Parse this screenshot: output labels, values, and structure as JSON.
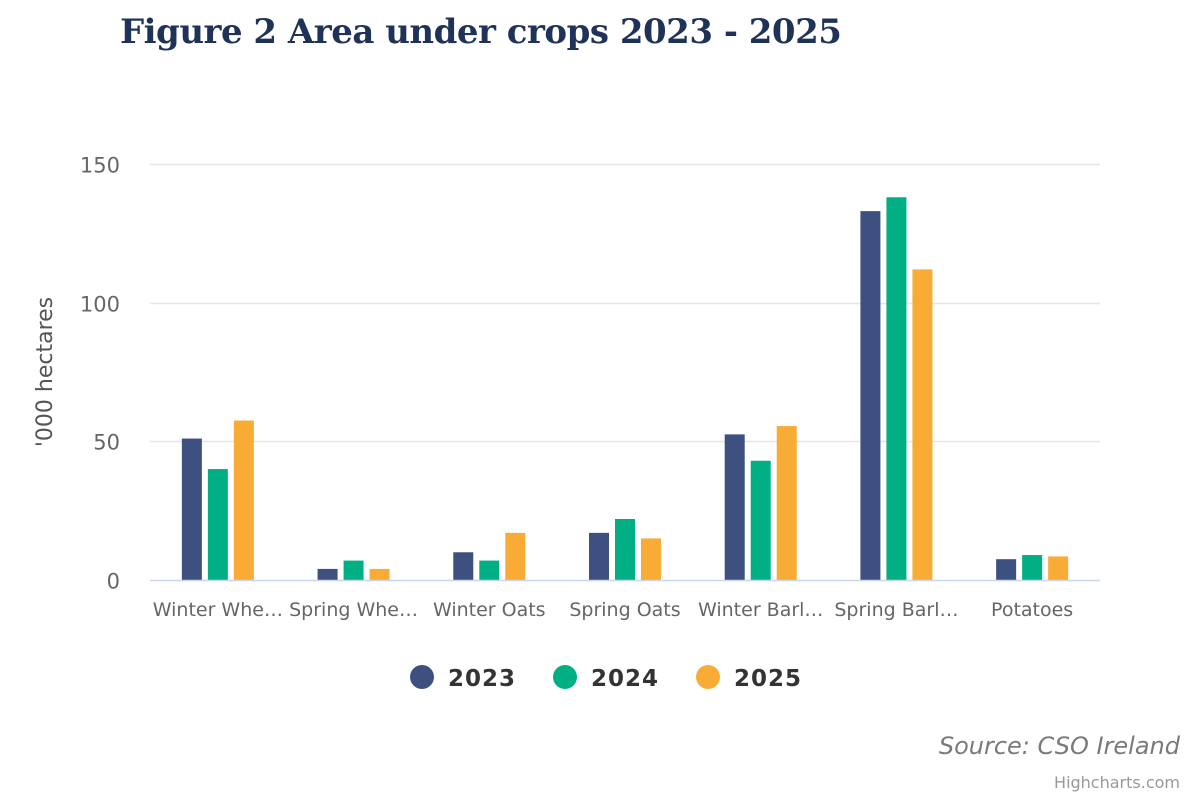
{
  "title": "Figure 2 Area under crops 2023 - 2025",
  "source": "Source: CSO Ireland",
  "credits": "Highcharts.com",
  "chart_data": {
    "type": "bar",
    "title": "Figure 2 Area under crops 2023 - 2025",
    "ylabel": "'000 hectares",
    "xlabel": "",
    "ylim": [
      0,
      150
    ],
    "yticks": [
      0,
      50,
      100,
      150
    ],
    "grid": true,
    "legend_position": "bottom-center",
    "categories": [
      "Winter Whe…",
      "Spring Whe…",
      "Winter Oats",
      "Spring Oats",
      "Winter Barl…",
      "Spring Barl…",
      "Potatoes"
    ],
    "series": [
      {
        "name": "2023",
        "color": "#3d5080",
        "values": [
          51,
          4,
          10,
          17,
          52.5,
          133,
          7.5
        ]
      },
      {
        "name": "2024",
        "color": "#00b084",
        "values": [
          40,
          7,
          7,
          22,
          43,
          138,
          9
        ]
      },
      {
        "name": "2025",
        "color": "#f8ac36",
        "values": [
          57.5,
          4,
          17,
          15,
          55.5,
          112,
          8.5
        ]
      }
    ]
  }
}
